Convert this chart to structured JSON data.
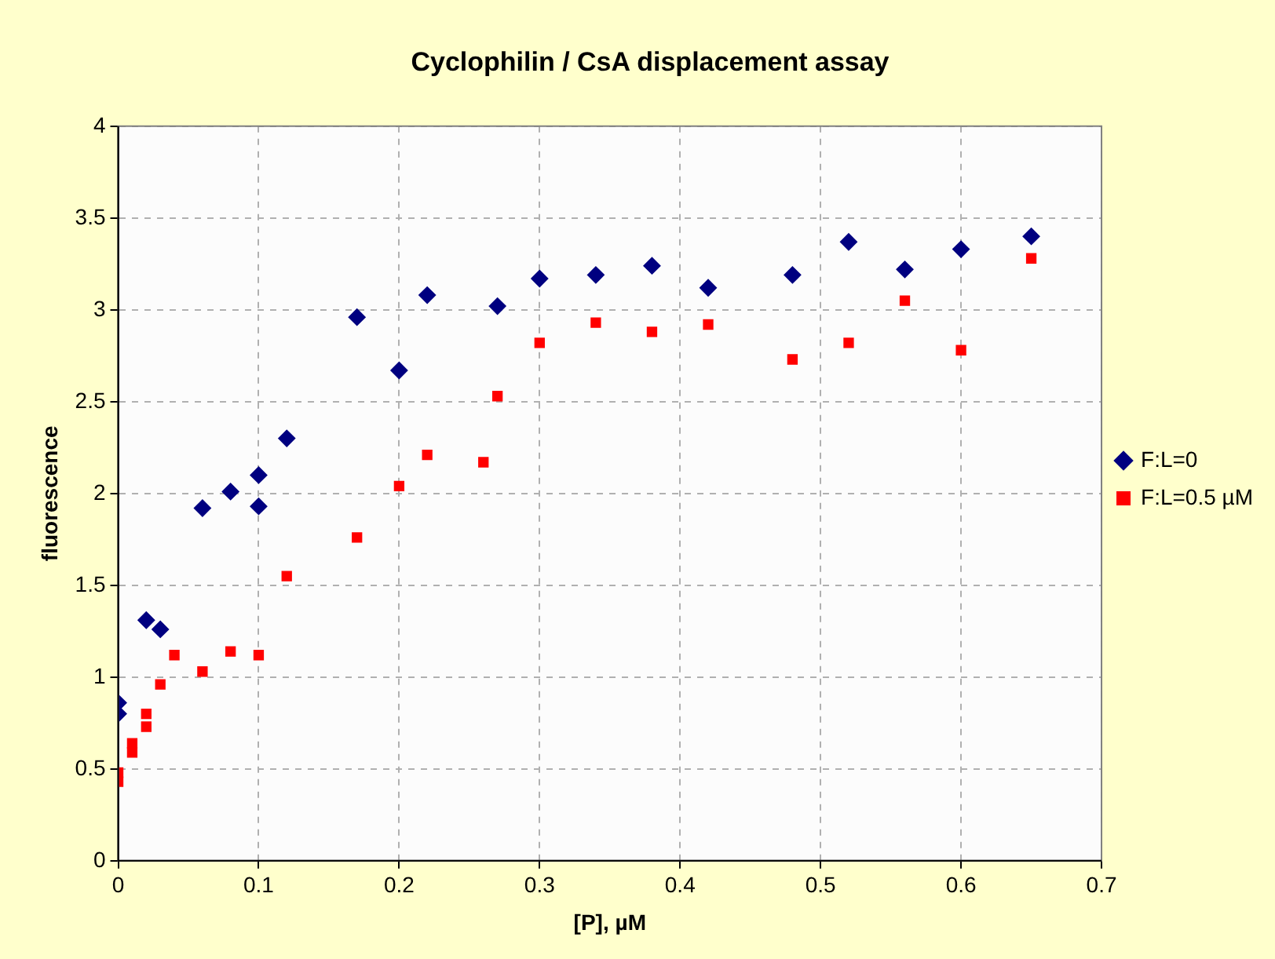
{
  "chart_data": {
    "type": "scatter",
    "title": "Cyclophilin / CsA displacement assay",
    "xlabel": "[P], µM",
    "ylabel": "fluorescence",
    "xlim": [
      0,
      0.7
    ],
    "xticks": [
      0,
      0.1,
      0.2,
      0.3,
      0.4,
      0.5,
      0.6,
      0.7
    ],
    "ylim": [
      0,
      4
    ],
    "yticks": [
      0,
      0.5,
      1,
      1.5,
      2,
      2.5,
      3,
      3.5,
      4
    ],
    "grid": true,
    "legend": "right",
    "series": [
      {
        "name": "F:L=0",
        "color": "#000080",
        "marker": "diamond",
        "x": [
          0,
          0,
          0.02,
          0.03,
          0.06,
          0.08,
          0.1,
          0.1,
          0.12,
          0.17,
          0.2,
          0.22,
          0.27,
          0.3,
          0.34,
          0.38,
          0.42,
          0.48,
          0.52,
          0.56,
          0.6,
          0.65
        ],
        "values": [
          0.86,
          0.8,
          1.31,
          1.26,
          1.92,
          2.01,
          2.1,
          1.93,
          2.3,
          2.96,
          2.67,
          3.08,
          3.02,
          3.17,
          3.19,
          3.24,
          3.12,
          3.19,
          3.37,
          3.22,
          3.33,
          3.4
        ]
      },
      {
        "name": "F:L=0.5 µM",
        "color": "#ff0000",
        "marker": "square",
        "x": [
          0,
          0,
          0.01,
          0.01,
          0.02,
          0.02,
          0.03,
          0.04,
          0.06,
          0.08,
          0.1,
          0.12,
          0.17,
          0.2,
          0.22,
          0.26,
          0.27,
          0.3,
          0.34,
          0.38,
          0.42,
          0.48,
          0.52,
          0.56,
          0.6,
          0.65
        ],
        "values": [
          0.48,
          0.43,
          0.64,
          0.59,
          0.8,
          0.73,
          0.96,
          1.12,
          1.03,
          1.14,
          1.12,
          1.55,
          1.76,
          2.04,
          2.21,
          2.17,
          2.53,
          2.82,
          2.93,
          2.88,
          2.92,
          2.73,
          2.82,
          3.05,
          2.78,
          3.28
        ]
      }
    ]
  }
}
